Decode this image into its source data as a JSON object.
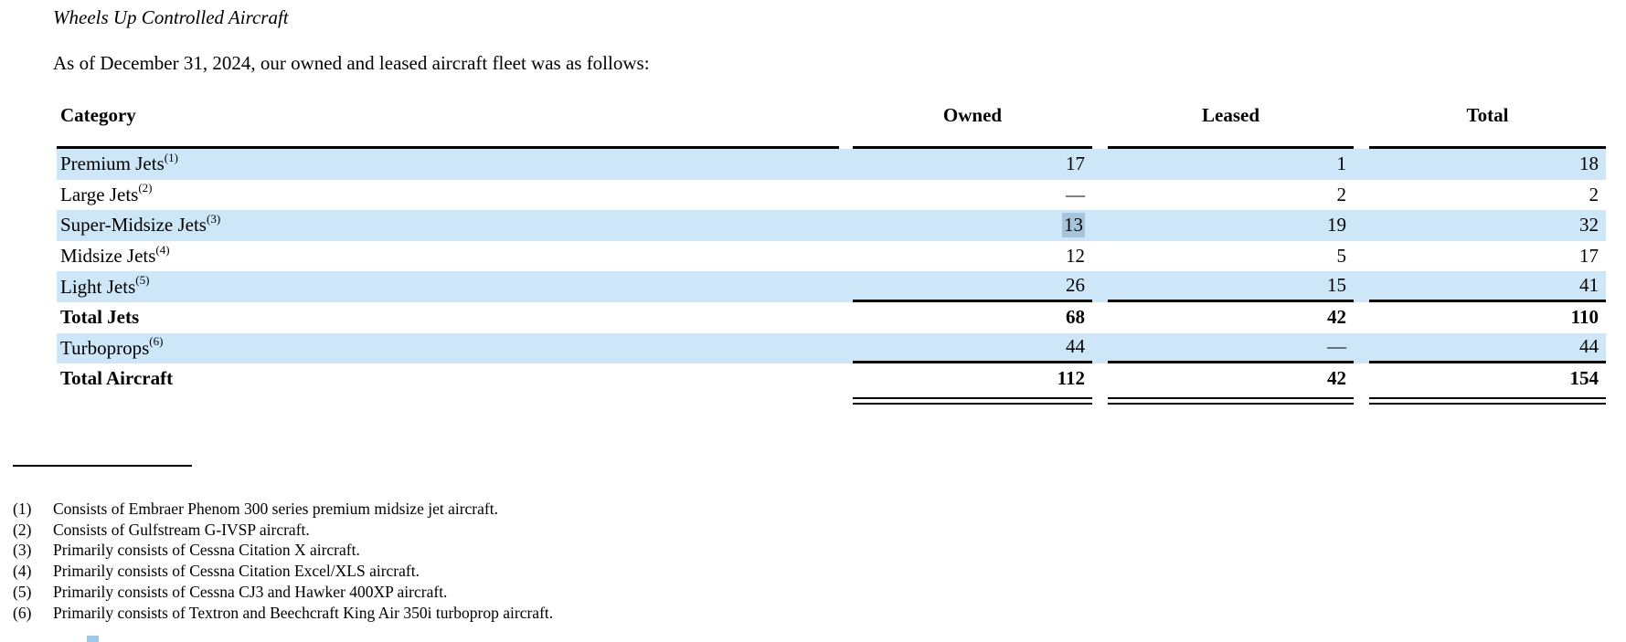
{
  "document": {
    "title": "Wheels Up Controlled Aircraft",
    "intro": "As of December 31, 2024, our owned and leased aircraft fleet was as follows:"
  },
  "table": {
    "columns": [
      "Category",
      "Owned",
      "Leased",
      "Total"
    ],
    "rows": [
      {
        "category": "Premium Jets",
        "footnote_marker": "(1)",
        "owned": "17",
        "leased": "1",
        "total": "18",
        "shaded": true
      },
      {
        "category": "Large Jets",
        "footnote_marker": "(2)",
        "owned": "—",
        "leased": "2",
        "total": "2",
        "shaded": false
      },
      {
        "category": "Super-Midsize Jets",
        "footnote_marker": "(3)",
        "owned": "13",
        "leased": "19",
        "total": "32",
        "shaded": true,
        "owned_selected": true
      },
      {
        "category": "Midsize Jets",
        "footnote_marker": "(4)",
        "owned": "12",
        "leased": "5",
        "total": "17",
        "shaded": false
      },
      {
        "category": "Light Jets",
        "footnote_marker": "(5)",
        "owned": "26",
        "leased": "15",
        "total": "41",
        "shaded": true,
        "rule_below": true
      },
      {
        "category": "Total Jets",
        "footnote_marker": "",
        "owned": "68",
        "leased": "42",
        "total": "110",
        "shaded": false,
        "bold": true
      },
      {
        "category": "Turboprops",
        "footnote_marker": "(6)",
        "owned": "44",
        "leased": "—",
        "total": "44",
        "shaded": true,
        "rule_below": true
      },
      {
        "category": "Total Aircraft",
        "footnote_marker": "",
        "owned": "112",
        "leased": "42",
        "total": "154",
        "shaded": false,
        "bold": true,
        "double_rule_below": true
      }
    ]
  },
  "footnotes": [
    {
      "marker": "(1)",
      "text": "Consists of Embraer Phenom 300 series premium midsize jet aircraft."
    },
    {
      "marker": "(2)",
      "text": "Consists of Gulfstream G-IVSP aircraft."
    },
    {
      "marker": "(3)",
      "text": "Primarily consists of Cessna Citation X aircraft."
    },
    {
      "marker": "(4)",
      "text": "Primarily consists of Cessna Citation Excel/XLS aircraft."
    },
    {
      "marker": "(5)",
      "text": "Primarily consists of Cessna CJ3 and Hawker 400XP aircraft."
    },
    {
      "marker": "(6)",
      "text": "Primarily consists of Textron and Beechcraft King Air 350i turboprop aircraft."
    }
  ],
  "colors": {
    "row_shade": "#cde7f8",
    "selection_highlight": "#a6c5dd",
    "text": "#000000",
    "rule": "#000000"
  }
}
